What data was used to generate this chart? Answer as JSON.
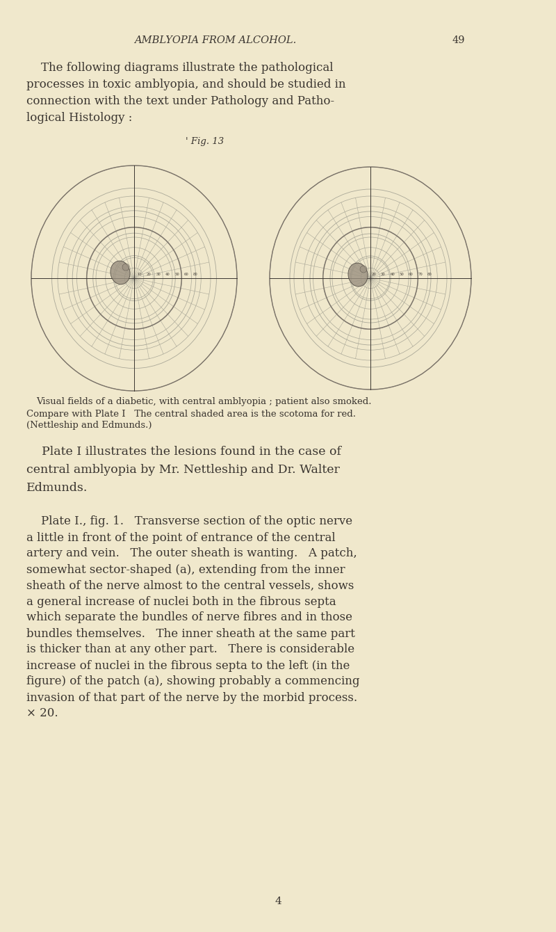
{
  "bg_color": "#f0e8cc",
  "text_color": "#3a3530",
  "header_title": "AMBLYOPIA FROM ALCOHOL.",
  "header_page": "49",
  "fig_label": "' Fig. 13",
  "para1_lines": [
    "    The following diagrams illustrate the pathological",
    "processes in toxic amblyopia, and should be studied in",
    "connection with the text under Pathology and Patho-",
    "logical Histology :"
  ],
  "caption1": "Visual fields of a diabetic, with central amblyopia ; patient also smoked.",
  "caption2": "Compare with Plate I   The central shaded area is the scotoma for red.",
  "caption3": "(Nettleship and Edmunds.)",
  "plate1_lines": [
    "    Plate I illustrates the lesions found in the case of",
    "central amblyopia by Mr. Nettleship and Dr. Walter",
    "Edmunds."
  ],
  "plate2_lines": [
    "    Plate I., fig. 1.   Transverse section of the optic nerve",
    "a little in front of the point of entrance of the central",
    "artery and vein.   The outer sheath is wanting.   A patch,",
    "somewhat sector-shaped (a), extending from the inner",
    "sheath of the nerve almost to the central vessels, shows",
    "a general increase of nuclei both in the fibrous septa",
    "which separate the bundles of nerve fibres and in those",
    "bundles themselves.   The inner sheath at the same part",
    "is thicker than at any other part.   There is considerable",
    "increase of nuclei in the fibrous septa to the left (in the",
    "figure) of the patch (a), showing probably a commencing",
    "invasion of that part of the nerve by the morbid process.",
    "× 20."
  ],
  "page_num_bottom": "4",
  "circle_color": "#9a9488",
  "scotoma_color": "#9a9080",
  "grid_color": "#aaa898",
  "outer_color": "#7a7268",
  "n_rings_inner": 7,
  "n_rings_outer": 4,
  "n_spokes": 16
}
